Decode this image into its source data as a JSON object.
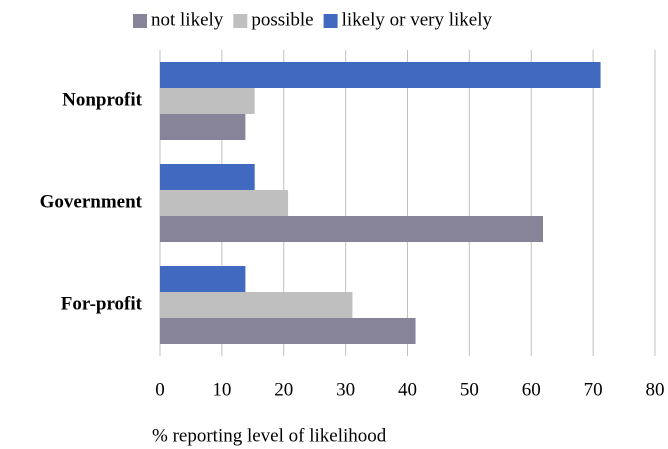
{
  "chart_data": {
    "type": "hbar",
    "categories": [
      "Nonprofit",
      "Government",
      "For-profit"
    ],
    "series": [
      {
        "name": "not likely",
        "color": "#878399",
        "values": [
          13.8,
          61.9,
          41.3
        ]
      },
      {
        "name": "possible",
        "color": "#bfbfbf",
        "values": [
          15.3,
          20.7,
          31.1
        ]
      },
      {
        "name": "likely or very likely",
        "color": "#4169c0",
        "values": [
          71.2,
          15.3,
          13.8
        ]
      }
    ],
    "xlim": [
      0,
      80
    ],
    "xticks": [
      0,
      10,
      20,
      30,
      40,
      50,
      60,
      70,
      80
    ],
    "xlabel": "% reporting level of likelihood",
    "grid": true,
    "legend": "top"
  }
}
